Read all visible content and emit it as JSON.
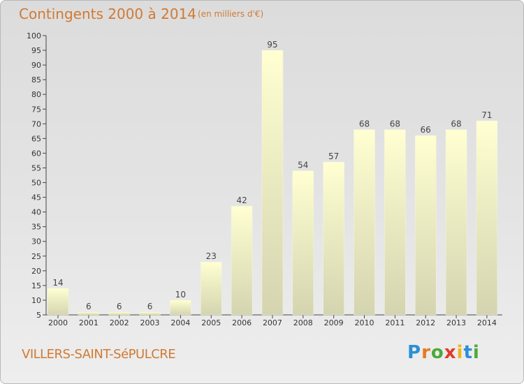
{
  "header": {
    "title": "Contingents 2000 à 2014",
    "subtitle": "(en milliers d'€)"
  },
  "footer": {
    "commune": "VILLERS-SAINT-SéPULCRE",
    "logo_letters": [
      "P",
      "r",
      "o",
      "x",
      "i",
      "t",
      "i"
    ]
  },
  "colors": {
    "title": "#d07a33",
    "bar_top": "#ffffd2",
    "bar_bottom": "#d4d4b0",
    "logo": [
      "#2a8fd6",
      "#e87a1c",
      "#4aaa3a",
      "#e23a2a",
      "#f0b41c",
      "#2a8fd6",
      "#4aaa3a"
    ]
  },
  "chart_data": {
    "type": "bar",
    "title": "Contingents 2000 à 2014",
    "categories": [
      "2000",
      "2001",
      "2002",
      "2003",
      "2004",
      "2005",
      "2006",
      "2007",
      "2008",
      "2009",
      "2010",
      "2011",
      "2012",
      "2013",
      "2014"
    ],
    "values": [
      14,
      6,
      6,
      6,
      10,
      23,
      42,
      95,
      54,
      57,
      68,
      68,
      66,
      68,
      71
    ],
    "xlabel": "",
    "ylabel": "",
    "ylim": [
      5,
      100
    ],
    "yticks": [
      "5",
      "10",
      "15",
      "20",
      "25",
      "30",
      "35",
      "40",
      "45",
      "50",
      "55",
      "60",
      "65",
      "70",
      "75",
      "80",
      "85",
      "90",
      "95",
      "100"
    ],
    "grid": false,
    "legend": "none"
  }
}
